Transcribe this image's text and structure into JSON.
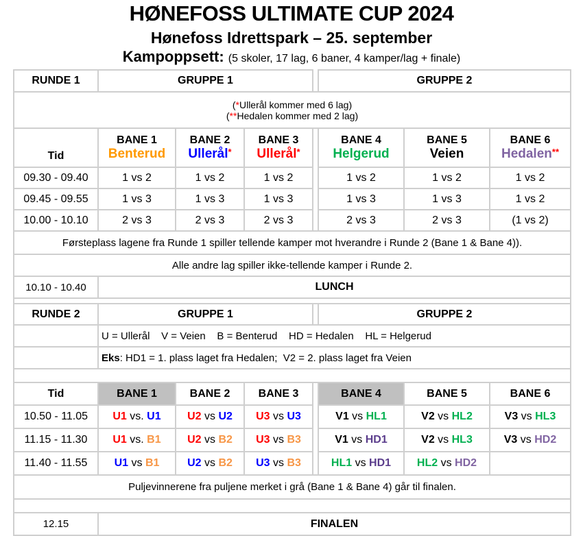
{
  "header": {
    "title": "HØNEFOSS ULTIMATE CUP 2024",
    "subtitle": "Hønefoss Idrettspark – 25. september",
    "schedule_label": "Kampoppsett:",
    "schedule_info": "(5 skoler, 17 lag, 6 baner, 4 kamper/lag + finale)"
  },
  "colors": {
    "orange": "#ff9900",
    "light_orange": "#f79646",
    "blue": "#0000ff",
    "red": "#ff0000",
    "green": "#00b050",
    "purple": "#8064a2",
    "dark_purple": "#5b3d8c",
    "gray_highlight": "#c0c0c0",
    "star": "#ff0000"
  },
  "round1": {
    "label": "RUNDE 1",
    "group1": "GRUPPE 1",
    "group2": "GRUPPE 2",
    "note1_star": "*",
    "note1": "Ullerål kommer med 6 lag",
    "note2_star": "**",
    "note2": "Hedalen kommer med 2 lag",
    "time_header": "Tid",
    "fields": [
      {
        "bane": "BANE 1",
        "team": "Benterud",
        "color": "#ff9900",
        "star": ""
      },
      {
        "bane": "BANE 2",
        "team": "Ullerål",
        "color": "#0000ff",
        "star": "*"
      },
      {
        "bane": "BANE 3",
        "team": "Ullerål",
        "color": "#ff0000",
        "star": "*"
      },
      {
        "bane": "BANE 4",
        "team": "Helgerud",
        "color": "#00b050",
        "star": ""
      },
      {
        "bane": "BANE 5",
        "team": "Veien",
        "color": "#000000",
        "star": ""
      },
      {
        "bane": "BANE 6",
        "team": "Hedalen",
        "color": "#8064a2",
        "star": "**"
      }
    ],
    "rows": [
      {
        "time": "09.30 - 09.40",
        "games": [
          "1 vs 2",
          "1 vs 2",
          "1 vs 2",
          "1 vs 2",
          "1 vs 2",
          "1 vs 2"
        ]
      },
      {
        "time": "09.45 - 09.55",
        "games": [
          "1 vs 3",
          "1 vs 3",
          "1 vs 3",
          "1 vs 3",
          "1 vs 3",
          "1 vs 2"
        ]
      },
      {
        "time": "10.00 - 10.10",
        "games": [
          "2 vs 3",
          "2 vs 3",
          "2 vs 3",
          "2 vs 3",
          "2 vs 3",
          "(1 vs 2)"
        ]
      }
    ],
    "info1": "Førsteplass lagene fra Runde 1 spiller tellende kamper mot hverandre i Runde 2 (Bane 1 & Bane 4)).",
    "info2": "Alle andre lag spiller ikke-tellende kamper i Runde 2."
  },
  "lunch": {
    "time": "10.10 - 10.40",
    "label": "LUNCH"
  },
  "round2": {
    "label": "RUNDE 2",
    "group1": "GRUPPE 1",
    "group2": "GRUPPE 2",
    "legend": "U = Ullerål    V = Veien    B = Benterud    HD = Hedalen    HL = Helgerud",
    "example_label": "Eks",
    "example": ": HD1 = 1. plass laget fra Hedalen;  V2 = 2. plass laget fra Veien",
    "time_header": "Tid",
    "fields": [
      {
        "bane": "BANE 1",
        "highlight": true
      },
      {
        "bane": "BANE 2",
        "highlight": false
      },
      {
        "bane": "BANE 3",
        "highlight": false
      },
      {
        "bane": "BANE 4",
        "highlight": true
      },
      {
        "bane": "BANE 5",
        "highlight": false
      },
      {
        "bane": "BANE 6",
        "highlight": false
      }
    ],
    "rows": [
      {
        "time": "10.50 - 11.05",
        "games": [
          [
            {
              "t": "U1",
              "c": "#ff0000"
            },
            {
              "v": " vs. "
            },
            {
              "t": "U1",
              "c": "#0000ff"
            }
          ],
          [
            {
              "t": "U2",
              "c": "#ff0000"
            },
            {
              "v": " vs "
            },
            {
              "t": "U2",
              "c": "#0000ff"
            }
          ],
          [
            {
              "t": "U3",
              "c": "#ff0000"
            },
            {
              "v": " vs "
            },
            {
              "t": "U3",
              "c": "#0000ff"
            }
          ],
          [
            {
              "t": "V1",
              "c": "#000000"
            },
            {
              "v": " vs "
            },
            {
              "t": "HL1",
              "c": "#00b050"
            }
          ],
          [
            {
              "t": "V2",
              "c": "#000000"
            },
            {
              "v": " vs "
            },
            {
              "t": "HL2",
              "c": "#00b050"
            }
          ],
          [
            {
              "t": "V3",
              "c": "#000000"
            },
            {
              "v": " vs "
            },
            {
              "t": "HL3",
              "c": "#00b050"
            }
          ]
        ]
      },
      {
        "time": "11.15 - 11.30",
        "games": [
          [
            {
              "t": "U1",
              "c": "#ff0000"
            },
            {
              "v": " vs. "
            },
            {
              "t": "B1",
              "c": "#f79646"
            }
          ],
          [
            {
              "t": "U2",
              "c": "#ff0000"
            },
            {
              "v": " vs "
            },
            {
              "t": "B2",
              "c": "#f79646"
            }
          ],
          [
            {
              "t": "U3",
              "c": "#ff0000"
            },
            {
              "v": " vs "
            },
            {
              "t": "B3",
              "c": "#f79646"
            }
          ],
          [
            {
              "t": "V1",
              "c": "#000000"
            },
            {
              "v": " vs "
            },
            {
              "t": "HD1",
              "c": "#5b3d8c"
            }
          ],
          [
            {
              "t": "V2",
              "c": "#000000"
            },
            {
              "v": " vs "
            },
            {
              "t": "HL3",
              "c": "#00b050"
            }
          ],
          [
            {
              "t": "V3",
              "c": "#000000"
            },
            {
              "v": " vs "
            },
            {
              "t": "HD2",
              "c": "#8064a2"
            }
          ]
        ]
      },
      {
        "time": "11.40 - 11.55",
        "games": [
          [
            {
              "t": "U1",
              "c": "#0000ff"
            },
            {
              "v": " vs "
            },
            {
              "t": "B1",
              "c": "#f79646"
            }
          ],
          [
            {
              "t": "U2",
              "c": "#0000ff"
            },
            {
              "v": " vs "
            },
            {
              "t": "B2",
              "c": "#f79646"
            }
          ],
          [
            {
              "t": "U3",
              "c": "#0000ff"
            },
            {
              "v": " vs "
            },
            {
              "t": "B3",
              "c": "#f79646"
            }
          ],
          [
            {
              "t": "HL1",
              "c": "#00b050"
            },
            {
              "v": " vs "
            },
            {
              "t": "HD1",
              "c": "#5b3d8c"
            }
          ],
          [
            {
              "t": "HL2",
              "c": "#00b050"
            },
            {
              "v": " vs "
            },
            {
              "t": "HD2",
              "c": "#8064a2"
            }
          ],
          []
        ]
      }
    ],
    "info": "Puljevinnerene fra puljene merket i grå (Bane 1 & Bane 4) går til finalen."
  },
  "final": {
    "time": "12.15",
    "label": "FINALEN"
  }
}
